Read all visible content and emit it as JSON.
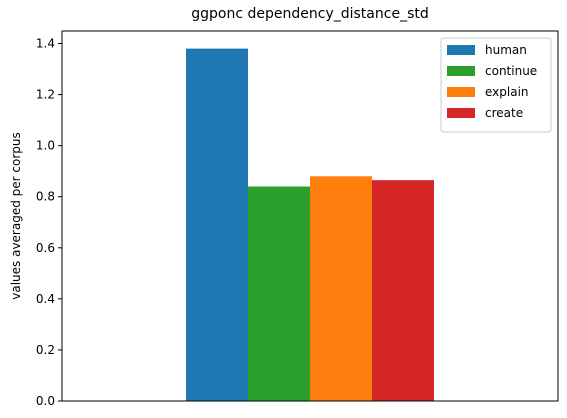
{
  "chart_data": {
    "type": "bar",
    "title": "ggponc dependency_distance_std",
    "xlabel": "",
    "ylabel": "values averaged per corpus",
    "ylim": [
      0,
      1.449
    ],
    "yticks": [
      0.0,
      0.2,
      0.4,
      0.6,
      0.8,
      1.0,
      1.2,
      1.4
    ],
    "ytick_labels": [
      "0.0",
      "0.2",
      "0.4",
      "0.6",
      "0.8",
      "1.0",
      "1.2",
      "1.4"
    ],
    "grid": false,
    "legend_position": "top-right",
    "categories": [
      ""
    ],
    "series": [
      {
        "name": "human",
        "values": [
          1.38
        ],
        "color": "#1f77b4"
      },
      {
        "name": "continue",
        "values": [
          0.84
        ],
        "color": "#2ca02c"
      },
      {
        "name": "explain",
        "values": [
          0.88
        ],
        "color": "#ff7f0e"
      },
      {
        "name": "create",
        "values": [
          0.865
        ],
        "color": "#d62728"
      }
    ]
  }
}
